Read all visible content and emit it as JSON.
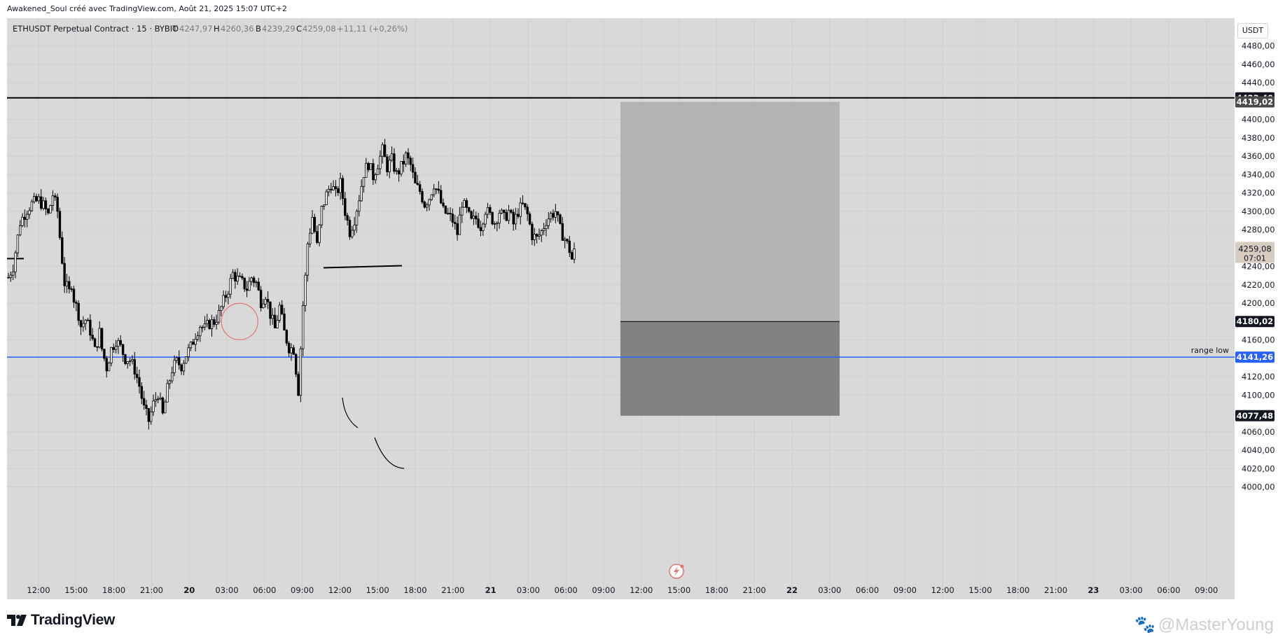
{
  "header": {
    "caption": "Awakened_Soul créé avec TradingView.com, Août 21, 2025 15:07 UTC+2"
  },
  "legend": {
    "symbol": "ETHUSDT Perpetual Contract · 15 · BYBIT",
    "open_label": "O",
    "open": "4247,97",
    "high_label": "H",
    "high": "4260,36",
    "low_label": "B",
    "low": "4239,29",
    "close_label": "C",
    "close": "4259,08",
    "change": "+11,11 (+0,26%)"
  },
  "currency_button": "USDT",
  "brand": "TradingView",
  "watermark": "@MasterYoung",
  "colors": {
    "background": "#d9d9d9",
    "candle": "#000000",
    "range_low_line": "#2962ff",
    "resistance_line": "#000000",
    "target_zone": "#b3b3b3",
    "stop_zone": "#828282",
    "price_tag_dark": "#131722",
    "price_tag_blue": "#2962ff",
    "current_price_tag": "#d7ccc0",
    "circle_marker": "#e57373"
  },
  "chart_data": {
    "type": "candlestick",
    "symbol": "ETHUSDT",
    "interval": "15",
    "exchange": "BYBIT",
    "y_axis": {
      "ticks": [
        "4480,00",
        "4460,00",
        "4440,00",
        "4400,00",
        "4380,00",
        "4360,00",
        "4340,00",
        "4320,00",
        "4300,00",
        "4280,00",
        "4240,00",
        "4220,00",
        "4200,00",
        "4160,00",
        "4120,00",
        "4100,00",
        "4060,00",
        "4040,00",
        "4020,00",
        "4000,00"
      ],
      "tick_values": [
        4480,
        4460,
        4440,
        4400,
        4380,
        4360,
        4340,
        4320,
        4300,
        4280,
        4240,
        4220,
        4200,
        4160,
        4120,
        4100,
        4060,
        4040,
        4020,
        4000
      ],
      "ylim": [
        3990,
        4490
      ]
    },
    "x_axis": {
      "ticks": [
        "12:00",
        "15:00",
        "18:00",
        "21:00",
        "20",
        "03:00",
        "06:00",
        "09:00",
        "12:00",
        "15:00",
        "18:00",
        "21:00",
        "21",
        "03:00",
        "06:00",
        "09:00",
        "12:00",
        "15:00",
        "18:00",
        "21:00",
        "22",
        "03:00",
        "06:00",
        "09:00",
        "12:00",
        "15:00",
        "18:00",
        "21:00",
        "23",
        "03:00",
        "06:00",
        "09:00"
      ],
      "bold_ticks": [
        "20",
        "21",
        "22",
        "23"
      ],
      "start_hour_label": "12:00 on 19",
      "bars_per_hour": 4
    },
    "price_path": [
      [
        0,
        4228
      ],
      [
        2,
        4240
      ],
      [
        5,
        4288
      ],
      [
        8,
        4302
      ],
      [
        10,
        4308
      ],
      [
        13,
        4312
      ],
      [
        15,
        4306
      ],
      [
        17,
        4296
      ],
      [
        19,
        4318
      ],
      [
        21,
        4300
      ],
      [
        22,
        4272
      ],
      [
        24,
        4222
      ],
      [
        26,
        4212
      ],
      [
        27,
        4222
      ],
      [
        28,
        4205
      ],
      [
        30,
        4188
      ],
      [
        31,
        4175
      ],
      [
        33,
        4182
      ],
      [
        35,
        4170
      ],
      [
        37,
        4148
      ],
      [
        39,
        4168
      ],
      [
        40,
        4150
      ],
      [
        42,
        4130
      ],
      [
        44,
        4150
      ],
      [
        46,
        4160
      ],
      [
        48,
        4152
      ],
      [
        50,
        4140
      ],
      [
        52,
        4138
      ],
      [
        54,
        4128
      ],
      [
        56,
        4110
      ],
      [
        58,
        4085
      ],
      [
        60,
        4072
      ],
      [
        62,
        4090
      ],
      [
        64,
        4102
      ],
      [
        66,
        4078
      ],
      [
        68,
        4106
      ],
      [
        70,
        4128
      ],
      [
        72,
        4136
      ],
      [
        74,
        4132
      ],
      [
        76,
        4144
      ],
      [
        78,
        4152
      ],
      [
        80,
        4166
      ],
      [
        82,
        4176
      ],
      [
        84,
        4172
      ],
      [
        86,
        4178
      ],
      [
        88,
        4180
      ],
      [
        90,
        4188
      ],
      [
        92,
        4202
      ],
      [
        94,
        4215
      ],
      [
        96,
        4232
      ],
      [
        98,
        4226
      ],
      [
        100,
        4222
      ],
      [
        102,
        4216
      ],
      [
        104,
        4228
      ],
      [
        106,
        4222
      ],
      [
        108,
        4202
      ],
      [
        110,
        4210
      ],
      [
        112,
        4188
      ],
      [
        114,
        4172
      ],
      [
        116,
        4196
      ],
      [
        118,
        4168
      ],
      [
        120,
        4152
      ],
      [
        122,
        4150
      ],
      [
        124,
        4105
      ],
      [
        126,
        4198
      ],
      [
        127,
        4228
      ],
      [
        128,
        4265
      ],
      [
        130,
        4294
      ],
      [
        132,
        4262
      ],
      [
        134,
        4302
      ],
      [
        136,
        4318
      ],
      [
        138,
        4330
      ],
      [
        140,
        4318
      ],
      [
        142,
        4330
      ],
      [
        144,
        4300
      ],
      [
        146,
        4278
      ],
      [
        148,
        4292
      ],
      [
        150,
        4315
      ],
      [
        152,
        4342
      ],
      [
        154,
        4352
      ],
      [
        156,
        4338
      ],
      [
        158,
        4352
      ],
      [
        160,
        4366
      ],
      [
        162,
        4348
      ],
      [
        164,
        4356
      ],
      [
        166,
        4340
      ],
      [
        168,
        4348
      ],
      [
        170,
        4360
      ],
      [
        172,
        4350
      ],
      [
        174,
        4328
      ],
      [
        176,
        4322
      ],
      [
        178,
        4308
      ],
      [
        180,
        4315
      ],
      [
        182,
        4330
      ],
      [
        184,
        4318
      ],
      [
        186,
        4300
      ],
      [
        188,
        4296
      ],
      [
        190,
        4290
      ],
      [
        192,
        4276
      ],
      [
        194,
        4310
      ],
      [
        196,
        4300
      ],
      [
        198,
        4288
      ],
      [
        200,
        4292
      ],
      [
        202,
        4284
      ],
      [
        204,
        4302
      ],
      [
        206,
        4295
      ],
      [
        208,
        4288
      ],
      [
        210,
        4300
      ],
      [
        212,
        4292
      ],
      [
        214,
        4300
      ],
      [
        216,
        4286
      ],
      [
        218,
        4300
      ],
      [
        220,
        4306
      ],
      [
        222,
        4296
      ],
      [
        224,
        4274
      ],
      [
        226,
        4270
      ],
      [
        228,
        4278
      ],
      [
        230,
        4290
      ],
      [
        232,
        4296
      ],
      [
        234,
        4300
      ],
      [
        236,
        4280
      ],
      [
        238,
        4270
      ],
      [
        240,
        4258
      ],
      [
        241,
        4248
      ],
      [
        242,
        4259
      ]
    ],
    "last_bar_index": 242,
    "last_price": 4259.08,
    "bar_countdown": "07:01",
    "horizontal_lines": [
      {
        "price": 4423.4,
        "label": "4423,40",
        "color": "#000000"
      },
      {
        "price": 4141.26,
        "label": "4141,26",
        "color": "#2962ff",
        "text": "range low"
      }
    ],
    "level_segments": [
      {
        "price": 4248.5,
        "from_bar": 0,
        "to_bar": 6
      },
      {
        "price": 4238.5,
        "from_bar": 104,
        "to_bar": 128
      }
    ],
    "position_tool": {
      "from_bar": 210,
      "to_bar": 284,
      "target": 4419.02,
      "target_label": "4419,02",
      "entry": 4180.02,
      "entry_label": "4180,02",
      "stop": 4077.48,
      "stop_label": "4077,48"
    },
    "current_price_label": "4259,08",
    "annotations": [
      {
        "type": "circle",
        "bar": 98,
        "price": 4180
      },
      {
        "type": "arc",
        "bar": 115,
        "price": 4130
      },
      {
        "type": "arc",
        "bar": 130,
        "price": 4080
      }
    ]
  }
}
